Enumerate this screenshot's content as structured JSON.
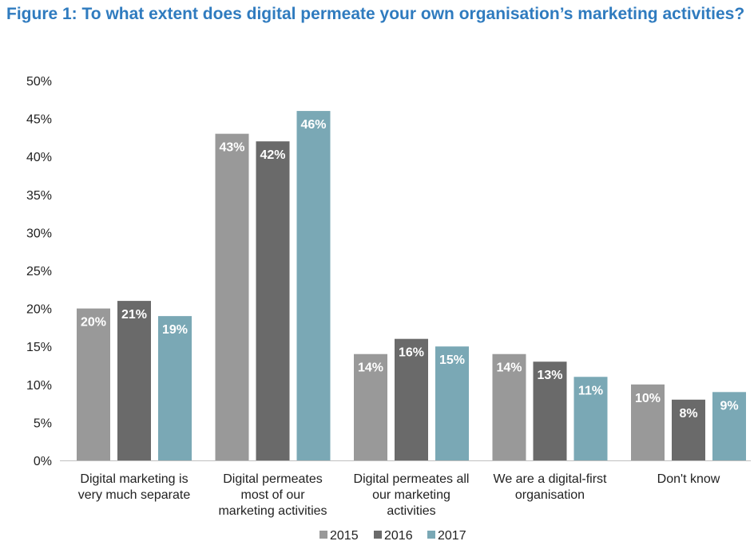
{
  "figure_title": "Figure 1: To what extent does digital permeate your own organisation’s marketing activities?",
  "chart_data": {
    "type": "bar",
    "title": "Figure 1: To what extent does digital permeate your own organisation’s marketing activities?",
    "categories": [
      [
        "Digital marketing is",
        "very much separate"
      ],
      [
        "Digital permeates",
        "most of our",
        "marketing activities"
      ],
      [
        "Digital permeates all",
        "our marketing",
        "activities"
      ],
      [
        "We are a digital-first",
        "organisation"
      ],
      [
        "Don't know"
      ]
    ],
    "series": [
      {
        "name": "2015",
        "color": "#999999",
        "values": [
          20,
          43,
          14,
          14,
          10
        ],
        "labels": [
          "20%",
          "43%",
          "14%",
          "14%",
          "10%"
        ]
      },
      {
        "name": "2016",
        "color": "#6a6a6a",
        "values": [
          21,
          42,
          16,
          13,
          8
        ],
        "labels": [
          "21%",
          "42%",
          "16%",
          "13%",
          "8%"
        ]
      },
      {
        "name": "2017",
        "color": "#7aa8b5",
        "values": [
          19,
          46,
          15,
          11,
          9
        ],
        "labels": [
          "19%",
          "46%",
          "15%",
          "11%",
          "9%"
        ]
      }
    ],
    "ylim": [
      0,
      50
    ],
    "yticks": [
      "0%",
      "5%",
      "10%",
      "15%",
      "20%",
      "25%",
      "30%",
      "35%",
      "40%",
      "45%",
      "50%"
    ],
    "grid": false,
    "legend_position": "bottom"
  }
}
